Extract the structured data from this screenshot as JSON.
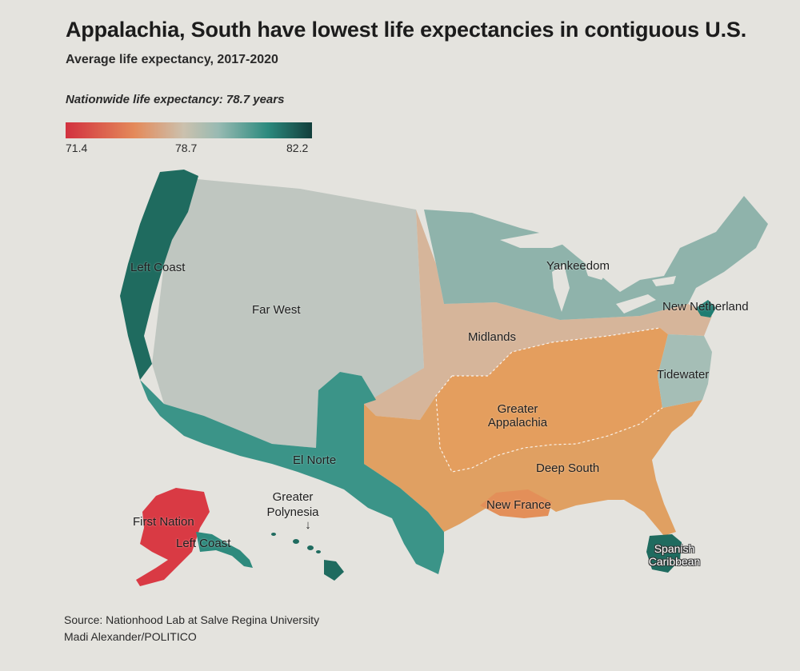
{
  "title": "Appalachia, South have lowest life expectancies in contiguous U.S.",
  "subtitle": "Average life expectancy, 2017-2020",
  "nationwide": "Nationwide life expectancy: 78.7 years",
  "legend": {
    "min": "71.4",
    "mid": "78.7",
    "max": "82.2",
    "colors": [
      "#d2313f",
      "#e48a5a",
      "#cbc1ae",
      "#98bab2",
      "#2c8a7e",
      "#123e3b"
    ]
  },
  "regions": {
    "left_coast": {
      "label": "Left Coast",
      "color": "#1f6b5f"
    },
    "far_west": {
      "label": "Far West",
      "color": "#bfc6c0"
    },
    "yankeedom": {
      "label": "Yankeedom",
      "color": "#8fb3ab"
    },
    "new_netherland": {
      "label": "New Netherland",
      "color": "#1f7d72"
    },
    "midlands": {
      "label": "Midlands",
      "color": "#d6b59a"
    },
    "tidewater": {
      "label": "Tidewater",
      "color": "#a5beb6"
    },
    "greater_appalachia_line1": "Greater",
    "greater_appalachia_line2": "Appalachia",
    "greater_appalachia_color": "#e49e5e",
    "deep_south": {
      "label": "Deep South",
      "color": "#e0a062"
    },
    "new_france": {
      "label": "New France",
      "color": "#e38f59"
    },
    "el_norte": {
      "label": "El Norte",
      "color": "#3b9488"
    },
    "spanish_caribbean_line1": "Spanish",
    "spanish_caribbean_line2": "Caribbean",
    "spanish_caribbean_color": "#1f6b5f",
    "first_nation": {
      "label": "First Nation",
      "color": "#d93a44"
    },
    "alaska_left_coast": {
      "label": "Left Coast",
      "color": "#2e8a7d"
    },
    "greater_polynesia_line1": "Greater",
    "greater_polynesia_line2": "Polynesia",
    "greater_polynesia_color": "#1f6b5f",
    "polynesia_arrow": "↓"
  },
  "source_line1": "Source: Nationhood Lab at Salve Regina University",
  "source_line2": "Madi Alexander/POLITICO"
}
